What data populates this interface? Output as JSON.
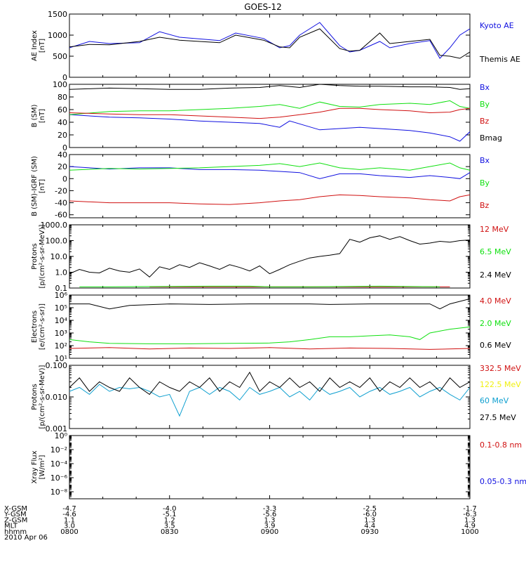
{
  "title": "GOES-12",
  "colors": {
    "black": "#000000",
    "blue": "#1010e0",
    "green": "#10e010",
    "red": "#d01010",
    "yellow": "#f0f010",
    "cyan": "#10a0d0"
  },
  "chart_data": [
    {
      "type": "line",
      "id": "ae",
      "ylabel": [
        "AE Index",
        "[nT]"
      ],
      "ylim": [
        0,
        1500
      ],
      "yticks": [
        0,
        500,
        1000,
        1500
      ],
      "ytick_labels": [
        "0",
        "500",
        "1000",
        "1500"
      ],
      "x_hours": [
        8.0,
        10.0
      ],
      "series": [
        {
          "name": "Kyoto AE",
          "color": "blue",
          "x": [
            8.0,
            8.1,
            8.2,
            8.35,
            8.45,
            8.55,
            8.75,
            8.83,
            8.97,
            9.05,
            9.1,
            9.15,
            9.25,
            9.35,
            9.4,
            9.45,
            9.55,
            9.6,
            9.7,
            9.8,
            9.85,
            9.9,
            9.95,
            10.0
          ],
          "y": [
            700,
            850,
            800,
            820,
            1080,
            950,
            870,
            1050,
            920,
            700,
            750,
            1000,
            1300,
            750,
            600,
            640,
            850,
            700,
            800,
            870,
            450,
            700,
            1000,
            1150
          ]
        },
        {
          "name": "Themis AE",
          "color": "black",
          "x": [
            8.0,
            8.1,
            8.2,
            8.35,
            8.45,
            8.55,
            8.75,
            8.83,
            8.97,
            9.05,
            9.1,
            9.15,
            9.25,
            9.35,
            9.4,
            9.45,
            9.55,
            9.6,
            9.7,
            9.8,
            9.85,
            9.9,
            9.95,
            10.0
          ],
          "y": [
            720,
            780,
            770,
            850,
            950,
            880,
            820,
            1000,
            880,
            720,
            700,
            950,
            1150,
            680,
            620,
            640,
            1050,
            800,
            850,
            900,
            520,
            500,
            450,
            600
          ]
        }
      ]
    },
    {
      "type": "line",
      "id": "bsm",
      "ylabel": [
        "B (SM)",
        "[nT]"
      ],
      "ylim": [
        0,
        100
      ],
      "yticks": [
        0,
        20,
        40,
        60,
        80,
        100
      ],
      "ytick_labels": [
        "0",
        "20",
        "40",
        "60",
        "80",
        "100"
      ],
      "series": [
        {
          "name": "Bx",
          "color": "blue",
          "x": [
            8.0,
            8.2,
            8.35,
            8.5,
            8.65,
            8.8,
            8.95,
            9.05,
            9.1,
            9.25,
            9.35,
            9.45,
            9.55,
            9.7,
            9.8,
            9.9,
            9.95,
            10.0
          ],
          "y": [
            52,
            48,
            47,
            45,
            42,
            40,
            38,
            32,
            42,
            28,
            30,
            32,
            30,
            27,
            23,
            17,
            10,
            25
          ]
        },
        {
          "name": "By",
          "color": "green",
          "x": [
            8.0,
            8.2,
            8.35,
            8.5,
            8.65,
            8.8,
            8.95,
            9.05,
            9.15,
            9.25,
            9.35,
            9.45,
            9.55,
            9.7,
            9.8,
            9.9,
            9.95,
            10.0
          ],
          "y": [
            52,
            57,
            58,
            58,
            60,
            62,
            65,
            68,
            62,
            72,
            65,
            64,
            68,
            70,
            68,
            74,
            65,
            62
          ]
        },
        {
          "name": "Bz",
          "color": "red",
          "x": [
            8.0,
            8.2,
            8.35,
            8.5,
            8.65,
            8.8,
            8.95,
            9.05,
            9.15,
            9.25,
            9.35,
            9.45,
            9.55,
            9.7,
            9.8,
            9.9,
            9.95,
            10.0
          ],
          "y": [
            55,
            53,
            52,
            52,
            50,
            48,
            46,
            48,
            52,
            56,
            62,
            62,
            60,
            58,
            55,
            56,
            60,
            62
          ]
        },
        {
          "name": "Bmag",
          "color": "black",
          "x": [
            8.0,
            8.2,
            8.35,
            8.5,
            8.65,
            8.8,
            8.95,
            9.05,
            9.15,
            9.25,
            9.35,
            9.45,
            9.55,
            9.7,
            9.8,
            9.9,
            9.95,
            10.0
          ],
          "y": [
            92,
            94,
            93,
            92,
            92,
            94,
            95,
            98,
            95,
            100,
            98,
            97,
            97,
            96,
            96,
            95,
            92,
            93
          ]
        }
      ]
    },
    {
      "type": "line",
      "id": "bdiff",
      "ylabel": [
        "B (SM)-IGRF (SM)",
        "[nT]"
      ],
      "ylim": [
        -65,
        40
      ],
      "yticks": [
        -60,
        -40,
        -20,
        0,
        20,
        40
      ],
      "ytick_labels": [
        "-60",
        "-40",
        "-20",
        "0",
        "20",
        "40"
      ],
      "series": [
        {
          "name": "Bx",
          "color": "blue",
          "x": [
            8.0,
            8.2,
            8.35,
            8.5,
            8.65,
            8.8,
            8.95,
            9.05,
            9.15,
            9.25,
            9.35,
            9.45,
            9.55,
            9.7,
            9.8,
            9.9,
            9.95,
            10.0
          ],
          "y": [
            20,
            16,
            18,
            18,
            15,
            15,
            14,
            12,
            10,
            0,
            8,
            8,
            5,
            2,
            5,
            2,
            0,
            10
          ]
        },
        {
          "name": "By",
          "color": "green",
          "x": [
            8.0,
            8.2,
            8.35,
            8.5,
            8.65,
            8.8,
            8.95,
            9.05,
            9.15,
            9.25,
            9.35,
            9.45,
            9.55,
            9.7,
            9.8,
            9.9,
            9.95,
            10.0
          ],
          "y": [
            14,
            17,
            16,
            17,
            18,
            20,
            22,
            25,
            20,
            26,
            18,
            15,
            18,
            14,
            20,
            26,
            18,
            14
          ]
        },
        {
          "name": "Bz",
          "color": "red",
          "x": [
            8.0,
            8.2,
            8.35,
            8.5,
            8.65,
            8.8,
            8.95,
            9.05,
            9.15,
            9.25,
            9.35,
            9.45,
            9.55,
            9.7,
            9.8,
            9.9,
            9.95,
            10.0
          ],
          "y": [
            -37,
            -40,
            -40,
            -40,
            -42,
            -43,
            -40,
            -37,
            -35,
            -30,
            -27,
            -28,
            -30,
            -32,
            -35,
            -37,
            -30,
            -27
          ]
        }
      ]
    },
    {
      "type": "line",
      "id": "protons1",
      "scale": "log",
      "ylabel": [
        "Protons",
        "[p/(cm²-s-sr-MeV)]"
      ],
      "ylim": [
        0.1,
        1000
      ],
      "yticks": [
        0.1,
        1,
        10,
        100,
        1000
      ],
      "ytick_labels": [
        "0.1",
        "1.0",
        "10.0",
        "100.0",
        "1000.0"
      ],
      "series": [
        {
          "name": "12 MeV",
          "color": "red",
          "x": [
            8.4,
            8.5,
            8.7,
            8.85,
            9.05,
            9.6,
            9.8,
            9.9
          ],
          "y": [
            0.12,
            0.12,
            0.12,
            0.12,
            0.12,
            0.12,
            0.12,
            0.12
          ]
        },
        {
          "name": "6.5 MeV",
          "color": "green",
          "x": [
            8.05,
            8.2,
            8.7,
            8.9,
            9.0,
            9.2,
            9.55,
            9.85
          ],
          "y": [
            0.12,
            0.12,
            0.13,
            0.13,
            0.12,
            0.12,
            0.13,
            0.12
          ]
        },
        {
          "name": "2.4 MeV",
          "color": "black",
          "x": [
            8.0,
            8.05,
            8.1,
            8.15,
            8.2,
            8.25,
            8.3,
            8.35,
            8.4,
            8.45,
            8.5,
            8.55,
            8.6,
            8.65,
            8.7,
            8.75,
            8.8,
            8.85,
            8.9,
            8.95,
            9.0,
            9.05,
            9.1,
            9.15,
            9.2,
            9.25,
            9.3,
            9.35,
            9.4,
            9.45,
            9.5,
            9.55,
            9.6,
            9.65,
            9.7,
            9.75,
            9.8,
            9.85,
            9.9,
            9.95,
            10.0
          ],
          "y": [
            0.8,
            1.5,
            1.0,
            0.9,
            1.8,
            1.2,
            1.0,
            1.6,
            0.5,
            2.2,
            1.5,
            3.0,
            2.0,
            4.0,
            2.5,
            1.5,
            3.0,
            2.0,
            1.2,
            2.5,
            0.8,
            1.5,
            3.0,
            5.0,
            8.0,
            10.0,
            12.0,
            15.0,
            120.0,
            80.0,
            150.0,
            200.0,
            120.0,
            180.0,
            100.0,
            60.0,
            70.0,
            90.0,
            80.0,
            100.0,
            110.0
          ]
        }
      ]
    },
    {
      "type": "line",
      "id": "electrons",
      "scale": "log",
      "ylabel": [
        "Electrons",
        "[e/(cm²-s-sr)]"
      ],
      "ylim": [
        10,
        1000000
      ],
      "yticks": [
        10,
        100,
        1000,
        10000,
        100000,
        1000000
      ],
      "ytick_labels": [
        "10¹",
        "10²",
        "10³",
        "10⁴",
        "10⁵",
        "10⁶"
      ],
      "series": [
        {
          "name": "4.0 MeV",
          "color": "red",
          "x": [
            8.0,
            8.2,
            8.4,
            8.6,
            8.8,
            9.0,
            9.2,
            9.4,
            9.6,
            9.8,
            10.0
          ],
          "y": [
            60,
            70,
            55,
            65,
            60,
            70,
            55,
            65,
            60,
            50,
            60
          ]
        },
        {
          "name": "2.0 MeV",
          "color": "green",
          "x": [
            8.0,
            8.1,
            8.2,
            8.4,
            8.6,
            8.8,
            9.0,
            9.1,
            9.2,
            9.3,
            9.4,
            9.5,
            9.6,
            9.7,
            9.75,
            9.8,
            9.9,
            10.0
          ],
          "y": [
            300,
            200,
            150,
            140,
            140,
            150,
            160,
            200,
            300,
            500,
            500,
            600,
            700,
            500,
            300,
            1000,
            2000,
            3000
          ]
        },
        {
          "name": "0.6 MeV",
          "color": "black",
          "x": [
            8.0,
            8.1,
            8.2,
            8.3,
            8.5,
            8.7,
            8.9,
            9.1,
            9.2,
            9.3,
            9.5,
            9.7,
            9.8,
            9.85,
            9.9,
            10.0
          ],
          "y": [
            200000,
            200000,
            80000,
            150000,
            200000,
            180000,
            200000,
            200000,
            200000,
            180000,
            200000,
            200000,
            200000,
            80000,
            200000,
            500000
          ]
        }
      ]
    },
    {
      "type": "line",
      "id": "protons2",
      "scale": "log",
      "ylabel": [
        "Protons",
        "[p/(cm²-s-sr-MeV)]"
      ],
      "ylim": [
        0.001,
        0.1
      ],
      "yticks": [
        0.001,
        0.01,
        0.1
      ],
      "ytick_labels": [
        "0.001",
        "0.010",
        "0.100"
      ],
      "series": [
        {
          "name": "332.5 MeV",
          "color": "red",
          "x": [],
          "y": []
        },
        {
          "name": "122.5 MeV",
          "color": "yellow",
          "x": [],
          "y": []
        },
        {
          "name": "60 MeV",
          "color": "cyan",
          "x": [
            8.0,
            8.05,
            8.1,
            8.15,
            8.2,
            8.25,
            8.3,
            8.35,
            8.4,
            8.45,
            8.5,
            8.55,
            8.6,
            8.65,
            8.7,
            8.75,
            8.8,
            8.85,
            8.9,
            8.95,
            9.0,
            9.05,
            9.1,
            9.15,
            9.2,
            9.25,
            9.3,
            9.35,
            9.4,
            9.45,
            9.5,
            9.55,
            9.6,
            9.65,
            9.7,
            9.75,
            9.8,
            9.85,
            9.9,
            9.95,
            10.0
          ],
          "y": [
            0.015,
            0.02,
            0.012,
            0.025,
            0.015,
            0.02,
            0.018,
            0.02,
            0.015,
            0.01,
            0.012,
            0.0025,
            0.015,
            0.02,
            0.012,
            0.02,
            0.015,
            0.008,
            0.02,
            0.012,
            0.015,
            0.02,
            0.01,
            0.015,
            0.008,
            0.02,
            0.012,
            0.015,
            0.02,
            0.01,
            0.015,
            0.02,
            0.012,
            0.015,
            0.02,
            0.01,
            0.015,
            0.02,
            0.012,
            0.008,
            0.02
          ]
        },
        {
          "name": "27.5 MeV",
          "color": "black",
          "x": [
            8.0,
            8.05,
            8.1,
            8.15,
            8.2,
            8.25,
            8.3,
            8.35,
            8.4,
            8.45,
            8.5,
            8.55,
            8.6,
            8.65,
            8.7,
            8.75,
            8.8,
            8.85,
            8.9,
            8.95,
            9.0,
            9.05,
            9.1,
            9.15,
            9.2,
            9.25,
            9.3,
            9.35,
            9.4,
            9.45,
            9.5,
            9.55,
            9.6,
            9.65,
            9.7,
            9.75,
            9.8,
            9.85,
            9.9,
            9.95,
            10.0
          ],
          "y": [
            0.02,
            0.04,
            0.015,
            0.03,
            0.02,
            0.015,
            0.04,
            0.02,
            0.012,
            0.03,
            0.02,
            0.015,
            0.03,
            0.02,
            0.04,
            0.015,
            0.03,
            0.02,
            0.06,
            0.015,
            0.03,
            0.02,
            0.04,
            0.02,
            0.03,
            0.015,
            0.04,
            0.02,
            0.03,
            0.02,
            0.04,
            0.015,
            0.03,
            0.02,
            0.04,
            0.02,
            0.03,
            0.015,
            0.04,
            0.02,
            0.03
          ]
        }
      ]
    },
    {
      "type": "line",
      "id": "xray",
      "scale": "log",
      "ylabel": [
        "Xray Flux",
        "[W/m²]"
      ],
      "ylim": [
        1e-09,
        1
      ],
      "yticks": [
        1e-08,
        1e-06,
        0.0001,
        0.01,
        1
      ],
      "ytick_labels": [
        "10⁻⁸",
        "10⁻⁶",
        "10⁻⁴",
        "10⁻²",
        "10⁰"
      ],
      "series": [
        {
          "name": "0.1-0.8 nm",
          "color": "red",
          "x": [],
          "y": []
        },
        {
          "name": "0.05-0.3 nm",
          "color": "blue",
          "x": [],
          "y": []
        }
      ]
    }
  ],
  "xaxis": {
    "ticks_hours": [
      8.0,
      8.5,
      9.0,
      9.5,
      10.0
    ],
    "rows": [
      {
        "label": "X-GSM",
        "values": [
          "-4.7",
          "-4.0",
          "-3.3",
          "-2.5",
          "-1.7"
        ]
      },
      {
        "label": "Y-GSM",
        "values": [
          "-4.6",
          "-5.1",
          "-5.6",
          "-6.0",
          "-6.3"
        ]
      },
      {
        "label": "Z-GSM",
        "values": [
          "1.1",
          "1.2",
          "1.3",
          "1.3",
          "1.3"
        ]
      },
      {
        "label": "MLT",
        "values": [
          "3.0",
          "3.5",
          "3.9",
          "4.4",
          "4.9"
        ]
      },
      {
        "label": "hhmm",
        "values": [
          "0800",
          "0830",
          "0900",
          "0930",
          "1000"
        ]
      }
    ],
    "date": "2010 Apr 06"
  }
}
